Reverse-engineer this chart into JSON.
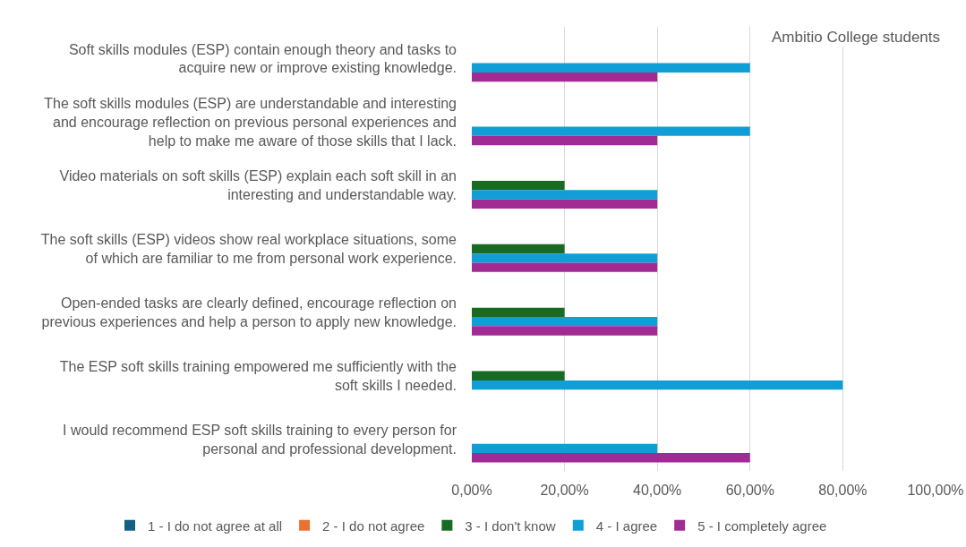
{
  "chart_data": {
    "type": "bar",
    "orientation": "horizontal",
    "title": "Ambitio College students",
    "categories": [
      "Soft skills modules (ESP) contain enough theory and tasks to acquire new or improve existing knowledge.",
      "The soft skills modules (ESP) are understandable and interesting and encourage reflection on previous personal experiences and help to make me aware of those skills that I lack.",
      "Video materials on soft skills (ESP) explain each soft skill in an interesting and understandable way.",
      "The soft skills (ESP) videos show real workplace situations, some of which are familiar to me from personal work experience.",
      "Open-ended tasks are clearly defined, encourage reflection on previous experiences and help a person to apply new knowledge.",
      "The ESP soft skills training empowered me sufficiently with the soft skills I needed.",
      "I would recommend ESP soft skills training to every person for personal and professional development."
    ],
    "series": [
      {
        "name": "1 - I do not agree at all",
        "color": "#156082",
        "values": [
          0,
          0,
          0,
          0,
          0,
          0,
          0
        ]
      },
      {
        "name": "2 - I do not agree",
        "color": "#e97132",
        "values": [
          0,
          0,
          0,
          0,
          0,
          0,
          0
        ]
      },
      {
        "name": "3 - I don't know",
        "color": "#196b24",
        "values": [
          0,
          0,
          20,
          20,
          20,
          20,
          0
        ]
      },
      {
        "name": "4 - I agree",
        "color": "#0f9ed5",
        "values": [
          60,
          60,
          40,
          40,
          40,
          80,
          40
        ]
      },
      {
        "name": "5 - I completely agree",
        "color": "#a02b93",
        "values": [
          40,
          40,
          40,
          40,
          40,
          0,
          60
        ]
      }
    ],
    "xlim": [
      0,
      100
    ],
    "xticks": [
      {
        "value": 0,
        "label": "0,00%"
      },
      {
        "value": 20,
        "label": "20,00%"
      },
      {
        "value": 40,
        "label": "40,00%"
      },
      {
        "value": 60,
        "label": "60,00%"
      },
      {
        "value": 80,
        "label": "80,00%"
      },
      {
        "value": 100,
        "label": "100,00%"
      }
    ],
    "grid": "x",
    "legend": "bottom"
  }
}
